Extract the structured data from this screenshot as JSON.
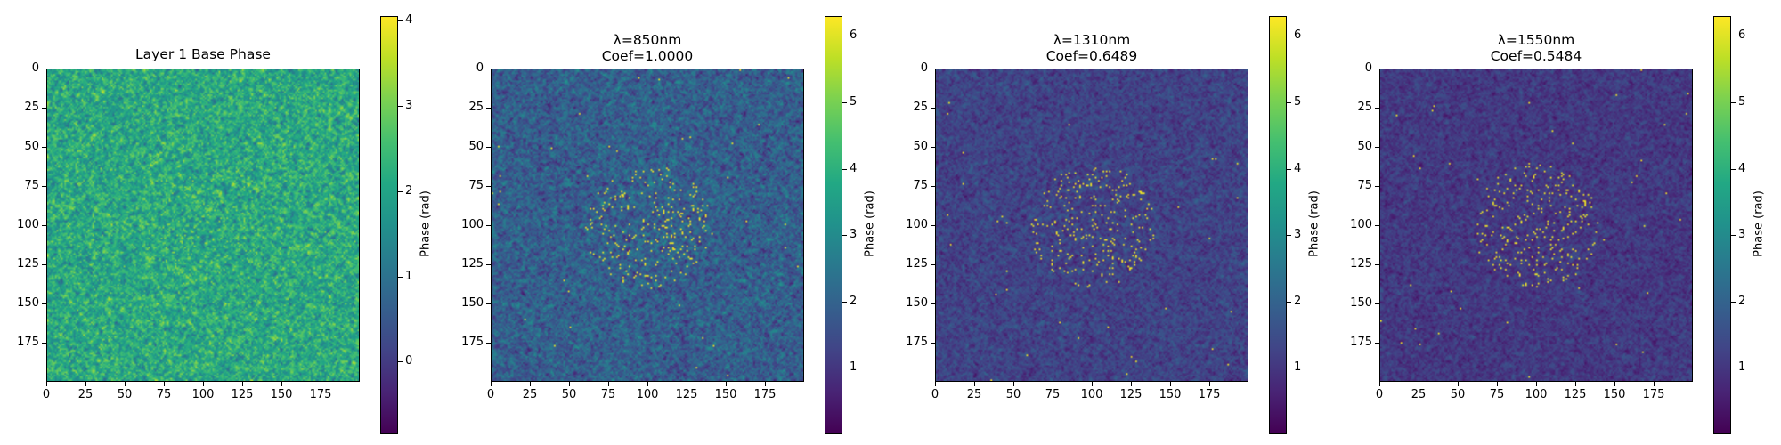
{
  "chart_data": [
    {
      "type": "heatmap",
      "title": "Layer 1 Base Phase",
      "colorbar_label": "Phase (rad)",
      "colorbar_range": [
        -0.85,
        4.05
      ],
      "colorbar_ticks": [
        "0",
        "1",
        "2",
        "3",
        "4"
      ],
      "colorbar_tick_values": [
        0,
        1,
        2,
        3,
        4
      ],
      "colormap": "viridis",
      "x_ticks": [
        "0",
        "25",
        "50",
        "75",
        "100",
        "125",
        "150",
        "175"
      ],
      "y_ticks": [
        "0",
        "25",
        "50",
        "75",
        "100",
        "125",
        "150",
        "175"
      ],
      "tick_values": [
        0,
        25,
        50,
        75,
        100,
        125,
        150,
        175
      ],
      "grid_size": 200,
      "background_mean": 2.1,
      "background_spread": 0.85,
      "center_cluster": {
        "x": 100,
        "y": 100,
        "radius": 40,
        "value": 3.2,
        "count": 120
      }
    },
    {
      "type": "heatmap",
      "title": "λ=850nm",
      "subtitle": "Coef=1.0000",
      "colorbar_label": "Phase (rad)",
      "colorbar_range": [
        0,
        6.3
      ],
      "colorbar_ticks": [
        "1",
        "2",
        "3",
        "4",
        "5",
        "6"
      ],
      "colorbar_tick_values": [
        1,
        2,
        3,
        4,
        5,
        6
      ],
      "colormap": "viridis",
      "x_ticks": [
        "0",
        "25",
        "50",
        "75",
        "100",
        "125",
        "150",
        "175"
      ],
      "y_ticks": [
        "0",
        "25",
        "50",
        "75",
        "100",
        "125",
        "150",
        "175"
      ],
      "tick_values": [
        0,
        25,
        50,
        75,
        100,
        125,
        150,
        175
      ],
      "grid_size": 200,
      "background_mean": 1.9,
      "background_spread": 0.85,
      "center_cluster": {
        "x": 100,
        "y": 100,
        "radius": 40,
        "value": 6.2,
        "count": 260
      }
    },
    {
      "type": "heatmap",
      "title": "λ=1310nm",
      "subtitle": "Coef=0.6489",
      "colorbar_label": "Phase (rad)",
      "colorbar_range": [
        0,
        6.3
      ],
      "colorbar_ticks": [
        "1",
        "2",
        "3",
        "4",
        "5",
        "6"
      ],
      "colorbar_tick_values": [
        1,
        2,
        3,
        4,
        5,
        6
      ],
      "colormap": "viridis",
      "x_ticks": [
        "0",
        "25",
        "50",
        "75",
        "100",
        "125",
        "150",
        "175"
      ],
      "y_ticks": [
        "0",
        "25",
        "50",
        "75",
        "100",
        "125",
        "150",
        "175"
      ],
      "tick_values": [
        0,
        25,
        50,
        75,
        100,
        125,
        150,
        175
      ],
      "grid_size": 200,
      "background_mean": 1.25,
      "background_spread": 0.55,
      "center_cluster": {
        "x": 100,
        "y": 100,
        "radius": 40,
        "value": 6.2,
        "count": 260
      }
    },
    {
      "type": "heatmap",
      "title": "λ=1550nm",
      "subtitle": "Coef=0.5484",
      "colorbar_label": "Phase (rad)",
      "colorbar_range": [
        0,
        6.3
      ],
      "colorbar_ticks": [
        "1",
        "2",
        "3",
        "4",
        "5",
        "6"
      ],
      "colorbar_tick_values": [
        1,
        2,
        3,
        4,
        5,
        6
      ],
      "colormap": "viridis",
      "x_ticks": [
        "0",
        "25",
        "50",
        "75",
        "100",
        "125",
        "150",
        "175"
      ],
      "y_ticks": [
        "0",
        "25",
        "50",
        "75",
        "100",
        "125",
        "150",
        "175"
      ],
      "tick_values": [
        0,
        25,
        50,
        75,
        100,
        125,
        150,
        175
      ],
      "grid_size": 200,
      "background_mean": 1.05,
      "background_spread": 0.48,
      "center_cluster": {
        "x": 100,
        "y": 100,
        "radius": 40,
        "value": 6.2,
        "count": 260
      }
    }
  ]
}
